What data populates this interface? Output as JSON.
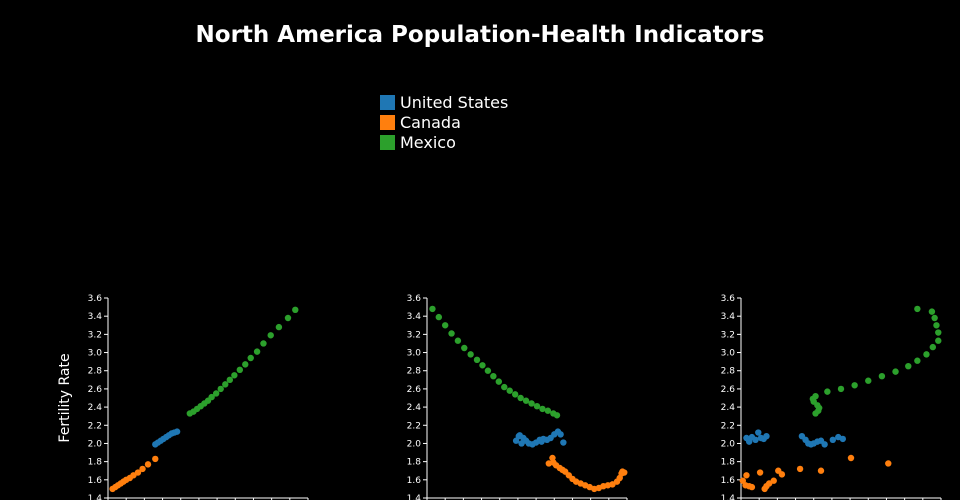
{
  "title": "North America Population-Health Indicators",
  "legend": [
    {
      "name": "United States",
      "color": "#1f77b4"
    },
    {
      "name": "Canada",
      "color": "#ff7f0e"
    },
    {
      "name": "Mexico",
      "color": "#2ca02c"
    }
  ],
  "chart_data": {
    "type": "scatter",
    "title": "North America Population-Health Indicators",
    "ylabel": "Fertility Rate",
    "ylim": [
      1.4,
      3.6
    ],
    "yticks": [
      "1.4",
      "1.6",
      "1.8",
      "2.0",
      "2.2",
      "2.4",
      "2.6",
      "2.8",
      "3.0",
      "3.2",
      "3.4",
      "3.6"
    ],
    "panels": [
      {
        "id": "panel-1",
        "xlim": [
          0,
          11
        ],
        "series": [
          {
            "name": "United States",
            "color": "#1f77b4",
            "points": [
              [
                2.6,
                1.99
              ],
              [
                2.75,
                2.01
              ],
              [
                2.9,
                2.03
              ],
              [
                3.05,
                2.05
              ],
              [
                3.2,
                2.07
              ],
              [
                3.35,
                2.09
              ],
              [
                3.5,
                2.11
              ],
              [
                3.65,
                2.12
              ],
              [
                3.8,
                2.13
              ]
            ]
          },
          {
            "name": "Canada",
            "color": "#ff7f0e",
            "points": [
              [
                0.25,
                1.5
              ],
              [
                0.4,
                1.52
              ],
              [
                0.55,
                1.54
              ],
              [
                0.7,
                1.56
              ],
              [
                0.85,
                1.58
              ],
              [
                1.0,
                1.6
              ],
              [
                1.2,
                1.62
              ],
              [
                1.4,
                1.65
              ],
              [
                1.65,
                1.68
              ],
              [
                1.9,
                1.72
              ],
              [
                2.2,
                1.77
              ],
              [
                2.6,
                1.83
              ]
            ]
          },
          {
            "name": "Mexico",
            "color": "#2ca02c",
            "points": [
              [
                4.5,
                2.33
              ],
              [
                4.7,
                2.35
              ],
              [
                4.9,
                2.38
              ],
              [
                5.1,
                2.41
              ],
              [
                5.3,
                2.44
              ],
              [
                5.5,
                2.47
              ],
              [
                5.7,
                2.51
              ],
              [
                5.95,
                2.55
              ],
              [
                6.2,
                2.6
              ],
              [
                6.45,
                2.65
              ],
              [
                6.7,
                2.7
              ],
              [
                6.95,
                2.75
              ],
              [
                7.25,
                2.81
              ],
              [
                7.55,
                2.87
              ],
              [
                7.85,
                2.94
              ],
              [
                8.2,
                3.01
              ],
              [
                8.55,
                3.1
              ],
              [
                8.95,
                3.19
              ],
              [
                9.4,
                3.28
              ],
              [
                9.9,
                3.38
              ],
              [
                10.3,
                3.47
              ]
            ]
          }
        ]
      },
      {
        "id": "panel-2",
        "xlim": [
          0,
          11
        ],
        "series": [
          {
            "name": "United States",
            "color": "#1f77b4",
            "points": [
              [
                4.9,
                2.03
              ],
              [
                5.1,
                2.09
              ],
              [
                5.3,
                2.06
              ],
              [
                5.45,
                2.03
              ],
              [
                5.6,
                2.0
              ],
              [
                5.8,
                1.99
              ],
              [
                6.0,
                2.01
              ],
              [
                6.2,
                2.04
              ],
              [
                6.4,
                2.05
              ],
              [
                6.6,
                2.04
              ],
              [
                6.8,
                2.06
              ],
              [
                7.0,
                2.1
              ],
              [
                7.2,
                2.13
              ],
              [
                7.35,
                2.1
              ],
              [
                7.5,
                2.01
              ],
              [
                5.05,
                2.08
              ],
              [
                5.2,
                2.0
              ],
              [
                6.3,
                2.02
              ]
            ]
          },
          {
            "name": "Canada",
            "color": "#ff7f0e",
            "points": [
              [
                6.9,
                1.84
              ],
              [
                6.95,
                1.79
              ],
              [
                7.1,
                1.76
              ],
              [
                7.3,
                1.73
              ],
              [
                7.45,
                1.71
              ],
              [
                7.6,
                1.69
              ],
              [
                7.8,
                1.65
              ],
              [
                8.0,
                1.61
              ],
              [
                8.2,
                1.58
              ],
              [
                8.45,
                1.56
              ],
              [
                8.7,
                1.54
              ],
              [
                8.95,
                1.52
              ],
              [
                9.2,
                1.5
              ],
              [
                9.45,
                1.51
              ],
              [
                9.7,
                1.53
              ],
              [
                9.95,
                1.54
              ],
              [
                10.2,
                1.55
              ],
              [
                10.45,
                1.58
              ],
              [
                10.6,
                1.62
              ],
              [
                10.7,
                1.67
              ],
              [
                10.85,
                1.68
              ],
              [
                10.75,
                1.69
              ],
              [
                6.7,
                1.78
              ]
            ]
          },
          {
            "name": "Mexico",
            "color": "#2ca02c",
            "points": [
              [
                0.3,
                3.48
              ],
              [
                0.65,
                3.39
              ],
              [
                1.0,
                3.3
              ],
              [
                1.35,
                3.21
              ],
              [
                1.7,
                3.13
              ],
              [
                2.05,
                3.05
              ],
              [
                2.4,
                2.98
              ],
              [
                2.75,
                2.92
              ],
              [
                3.05,
                2.86
              ],
              [
                3.35,
                2.8
              ],
              [
                3.65,
                2.74
              ],
              [
                3.95,
                2.68
              ],
              [
                4.25,
                2.62
              ],
              [
                4.55,
                2.58
              ],
              [
                4.85,
                2.54
              ],
              [
                5.15,
                2.5
              ],
              [
                5.45,
                2.47
              ],
              [
                5.75,
                2.44
              ],
              [
                6.05,
                2.41
              ],
              [
                6.35,
                2.38
              ],
              [
                6.65,
                2.36
              ],
              [
                6.95,
                2.33
              ],
              [
                7.15,
                2.31
              ]
            ]
          }
        ]
      },
      {
        "id": "panel-3",
        "xlim": [
          0,
          11
        ],
        "series": [
          {
            "name": "United States",
            "color": "#1f77b4",
            "points": [
              [
                0.3,
                2.06
              ],
              [
                0.45,
                2.02
              ],
              [
                0.6,
                2.07
              ],
              [
                0.8,
                2.04
              ],
              [
                0.95,
                2.12
              ],
              [
                1.1,
                2.06
              ],
              [
                1.25,
                2.05
              ],
              [
                1.4,
                2.08
              ],
              [
                3.35,
                2.08
              ],
              [
                3.55,
                2.04
              ],
              [
                3.7,
                2.0
              ],
              [
                3.85,
                1.99
              ],
              [
                4.0,
                2.0
              ],
              [
                4.2,
                2.02
              ],
              [
                4.4,
                2.03
              ],
              [
                4.6,
                1.99
              ],
              [
                5.05,
                2.04
              ],
              [
                5.35,
                2.07
              ],
              [
                5.6,
                2.05
              ]
            ]
          },
          {
            "name": "Canada",
            "color": "#ff7f0e",
            "points": [
              [
                0.1,
                1.59
              ],
              [
                0.25,
                1.54
              ],
              [
                0.45,
                1.53
              ],
              [
                0.6,
                1.52
              ],
              [
                1.4,
                1.53
              ],
              [
                1.55,
                1.56
              ],
              [
                1.8,
                1.59
              ],
              [
                2.05,
                1.7
              ],
              [
                2.25,
                1.66
              ],
              [
                3.25,
                1.72
              ],
              [
                4.4,
                1.7
              ],
              [
                6.05,
                1.84
              ],
              [
                8.1,
                1.78
              ],
              [
                0.3,
                1.65
              ],
              [
                1.05,
                1.68
              ],
              [
                1.3,
                1.5
              ]
            ]
          },
          {
            "name": "Mexico",
            "color": "#2ca02c",
            "points": [
              [
                4.1,
                2.33
              ],
              [
                4.25,
                2.36
              ],
              [
                4.3,
                2.39
              ],
              [
                4.2,
                2.42
              ],
              [
                4.0,
                2.46
              ],
              [
                3.95,
                2.49
              ],
              [
                4.1,
                2.52
              ],
              [
                4.75,
                2.57
              ],
              [
                5.5,
                2.6
              ],
              [
                6.25,
                2.64
              ],
              [
                7.0,
                2.69
              ],
              [
                7.75,
                2.74
              ],
              [
                8.5,
                2.79
              ],
              [
                9.2,
                2.85
              ],
              [
                9.7,
                2.91
              ],
              [
                10.2,
                2.98
              ],
              [
                10.55,
                3.06
              ],
              [
                10.85,
                3.13
              ],
              [
                10.85,
                3.22
              ],
              [
                10.75,
                3.3
              ],
              [
                10.65,
                3.38
              ],
              [
                10.5,
                3.45
              ],
              [
                9.7,
                3.48
              ]
            ]
          }
        ]
      }
    ]
  }
}
